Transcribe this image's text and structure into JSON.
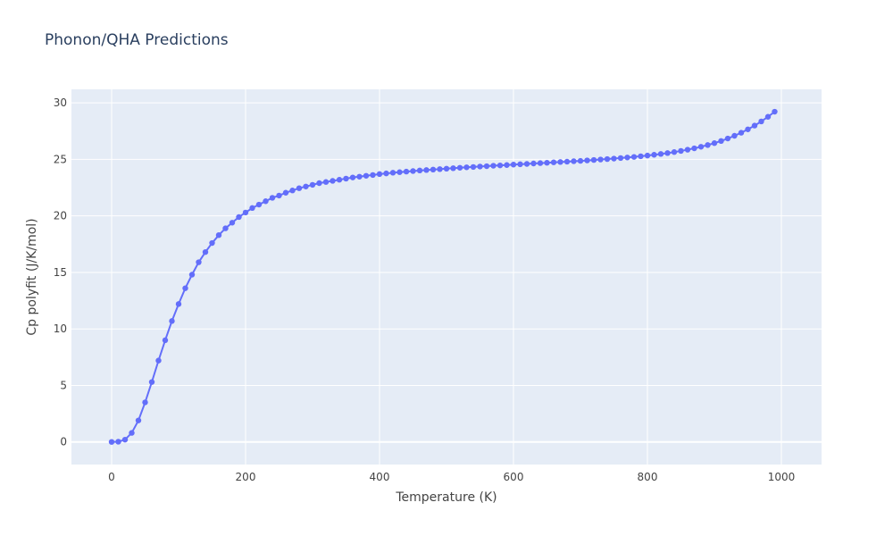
{
  "chart_data": {
    "type": "line",
    "title": "Phonon/QHA Predictions",
    "x_label": "Temperature (K)",
    "y_label": "Cp polyfit (J/K/mol)",
    "x": [
      0,
      10,
      20,
      30,
      40,
      50,
      60,
      70,
      80,
      90,
      100,
      110,
      120,
      130,
      140,
      150,
      160,
      170,
      180,
      190,
      200,
      210,
      220,
      230,
      240,
      250,
      260,
      270,
      280,
      290,
      300,
      310,
      320,
      330,
      340,
      350,
      360,
      370,
      380,
      390,
      400,
      410,
      420,
      430,
      440,
      450,
      460,
      470,
      480,
      490,
      500,
      510,
      520,
      530,
      540,
      550,
      560,
      570,
      580,
      590,
      600,
      610,
      620,
      630,
      640,
      650,
      660,
      670,
      680,
      690,
      700,
      710,
      720,
      730,
      740,
      750,
      760,
      770,
      780,
      790,
      800,
      810,
      820,
      830,
      840,
      850,
      860,
      870,
      880,
      890,
      900,
      910,
      920,
      930,
      940,
      950,
      960,
      970,
      980,
      990
    ],
    "series": [
      {
        "name": "Cp polyfit",
        "color": "#636efa",
        "values": [
          0,
          0.02,
          0.2,
          0.8,
          1.9,
          3.5,
          5.3,
          7.2,
          9.0,
          10.7,
          12.2,
          13.6,
          14.8,
          15.9,
          16.8,
          17.6,
          18.3,
          18.9,
          19.4,
          19.9,
          20.3,
          20.7,
          21.0,
          21.3,
          21.6,
          21.8,
          22.05,
          22.25,
          22.45,
          22.6,
          22.75,
          22.9,
          23.0,
          23.1,
          23.2,
          23.3,
          23.4,
          23.47,
          23.55,
          23.62,
          23.7,
          23.76,
          23.82,
          23.87,
          23.92,
          23.97,
          24.02,
          24.06,
          24.1,
          24.14,
          24.18,
          24.22,
          24.26,
          24.3,
          24.33,
          24.37,
          24.4,
          24.44,
          24.47,
          24.5,
          24.54,
          24.57,
          24.6,
          24.64,
          24.67,
          24.7,
          24.74,
          24.77,
          24.8,
          24.84,
          24.87,
          24.91,
          24.95,
          24.99,
          25.03,
          25.07,
          25.12,
          25.17,
          25.22,
          25.28,
          25.34,
          25.41,
          25.48,
          25.56,
          25.65,
          25.75,
          25.86,
          25.98,
          26.12,
          26.27,
          26.44,
          26.63,
          26.85,
          27.09,
          27.36,
          27.66,
          27.99,
          28.36,
          28.77,
          29.22
        ]
      }
    ],
    "xlim": [
      -60,
      1060
    ],
    "xticks": [
      0,
      200,
      400,
      600,
      800,
      1000
    ],
    "ylim": [
      -2,
      31.2
    ],
    "yticks": [
      0,
      5,
      10,
      15,
      20,
      25,
      30
    ],
    "grid": true
  }
}
